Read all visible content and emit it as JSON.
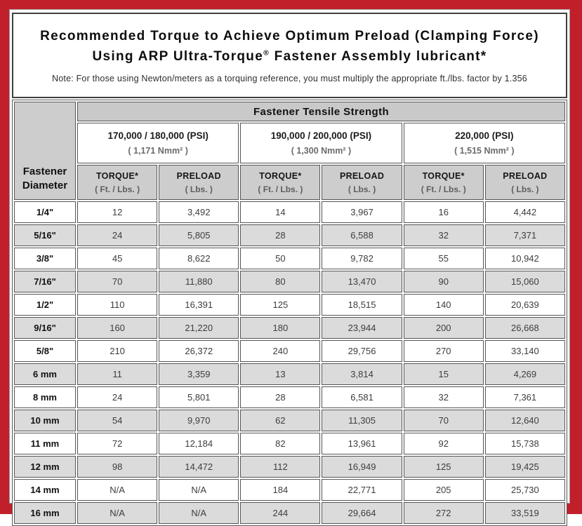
{
  "title": {
    "line1": "Recommended Torque to Achieve Optimum Preload (Clamping Force)",
    "line2_prefix": "Using ARP Ultra-Torque",
    "line2_reg": "®",
    "line2_suffix": " Fastener Assembly lubricant*",
    "note": "Note: For those using Newton/meters as a torquing reference, you must multiply the appropriate ft./lbs. factor by 1.356"
  },
  "colors": {
    "frame_red": "#c1202b",
    "header_gray": "#cdcdcd",
    "stripe_gray": "#dbdbdb",
    "border_dark": "#565656"
  },
  "table": {
    "corner_header": {
      "line1": "Fastener",
      "line2": "Diameter"
    },
    "tensile_header": "Fastener Tensile Strength",
    "groups": [
      {
        "psi": "170,000 / 180,000 (PSI)",
        "nmm": "( 1,171 Nmm² )"
      },
      {
        "psi": "190,000 / 200,000 (PSI)",
        "nmm": "( 1,300 Nmm² )"
      },
      {
        "psi": "220,000 (PSI)",
        "nmm": "( 1,515 Nmm² )"
      }
    ],
    "sub_headers": {
      "torque_label": "TORQUE*",
      "torque_unit": "( Ft. / Lbs. )",
      "preload_label": "PRELOAD",
      "preload_unit": "( Lbs. )"
    },
    "rows": [
      {
        "diameter": "1/4\"",
        "values": [
          "12",
          "3,492",
          "14",
          "3,967",
          "16",
          "4,442"
        ]
      },
      {
        "diameter": "5/16\"",
        "values": [
          "24",
          "5,805",
          "28",
          "6,588",
          "32",
          "7,371"
        ]
      },
      {
        "diameter": "3/8\"",
        "values": [
          "45",
          "8,622",
          "50",
          "9,782",
          "55",
          "10,942"
        ]
      },
      {
        "diameter": "7/16\"",
        "values": [
          "70",
          "11,880",
          "80",
          "13,470",
          "90",
          "15,060"
        ]
      },
      {
        "diameter": "1/2\"",
        "values": [
          "110",
          "16,391",
          "125",
          "18,515",
          "140",
          "20,639"
        ]
      },
      {
        "diameter": "9/16\"",
        "values": [
          "160",
          "21,220",
          "180",
          "23,944",
          "200",
          "26,668"
        ]
      },
      {
        "diameter": "5/8\"",
        "values": [
          "210",
          "26,372",
          "240",
          "29,756",
          "270",
          "33,140"
        ]
      },
      {
        "diameter": "6 mm",
        "values": [
          "11",
          "3,359",
          "13",
          "3,814",
          "15",
          "4,269"
        ]
      },
      {
        "diameter": "8 mm",
        "values": [
          "24",
          "5,801",
          "28",
          "6,581",
          "32",
          "7,361"
        ]
      },
      {
        "diameter": "10 mm",
        "values": [
          "54",
          "9,970",
          "62",
          "11,305",
          "70",
          "12,640"
        ]
      },
      {
        "diameter": "11 mm",
        "values": [
          "72",
          "12,184",
          "82",
          "13,961",
          "92",
          "15,738"
        ]
      },
      {
        "diameter": "12 mm",
        "values": [
          "98",
          "14,472",
          "112",
          "16,949",
          "125",
          "19,425"
        ]
      },
      {
        "diameter": "14 mm",
        "values": [
          "N/A",
          "N/A",
          "184",
          "22,771",
          "205",
          "25,730"
        ]
      },
      {
        "diameter": "16 mm",
        "values": [
          "N/A",
          "N/A",
          "244",
          "29,664",
          "272",
          "33,519"
        ]
      }
    ]
  },
  "chart_data": {
    "type": "table",
    "title": "Recommended Torque to Achieve Optimum Preload (Clamping Force) Using ARP Ultra-Torque® Fastener Assembly lubricant*",
    "columns": [
      "Fastener Diameter",
      "170/180k PSI Torque (Ft./Lbs.)",
      "170/180k PSI Preload (Lbs.)",
      "190/200k PSI Torque (Ft./Lbs.)",
      "190/200k PSI Preload (Lbs.)",
      "220k PSI Torque (Ft./Lbs.)",
      "220k PSI Preload (Lbs.)"
    ],
    "rows": [
      [
        "1/4\"",
        "12",
        "3,492",
        "14",
        "3,967",
        "16",
        "4,442"
      ],
      [
        "5/16\"",
        "24",
        "5,805",
        "28",
        "6,588",
        "32",
        "7,371"
      ],
      [
        "3/8\"",
        "45",
        "8,622",
        "50",
        "9,782",
        "55",
        "10,942"
      ],
      [
        "7/16\"",
        "70",
        "11,880",
        "80",
        "13,470",
        "90",
        "15,060"
      ],
      [
        "1/2\"",
        "110",
        "16,391",
        "125",
        "18,515",
        "140",
        "20,639"
      ],
      [
        "9/16\"",
        "160",
        "21,220",
        "180",
        "23,944",
        "200",
        "26,668"
      ],
      [
        "5/8\"",
        "210",
        "26,372",
        "240",
        "29,756",
        "270",
        "33,140"
      ],
      [
        "6 mm",
        "11",
        "3,359",
        "13",
        "3,814",
        "15",
        "4,269"
      ],
      [
        "8 mm",
        "24",
        "5,801",
        "28",
        "6,581",
        "32",
        "7,361"
      ],
      [
        "10 mm",
        "54",
        "9,970",
        "62",
        "11,305",
        "70",
        "12,640"
      ],
      [
        "11 mm",
        "72",
        "12,184",
        "82",
        "13,961",
        "92",
        "15,738"
      ],
      [
        "12 mm",
        "98",
        "14,472",
        "112",
        "16,949",
        "125",
        "19,425"
      ],
      [
        "14 mm",
        "N/A",
        "N/A",
        "184",
        "22,771",
        "205",
        "25,730"
      ],
      [
        "16 mm",
        "N/A",
        "N/A",
        "244",
        "29,664",
        "272",
        "33,519"
      ]
    ]
  }
}
